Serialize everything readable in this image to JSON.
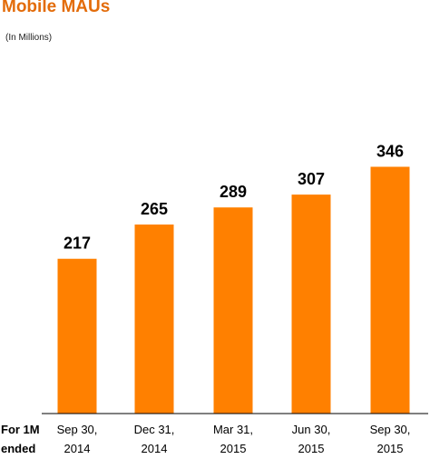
{
  "chart_data": {
    "type": "bar",
    "title": "Mobile MAUs",
    "subtitle": "(In Millions)",
    "x_axis_prefix": [
      "For 1M",
      "ended"
    ],
    "categories": [
      [
        "Sep 30,",
        "2014"
      ],
      [
        "Dec 31,",
        "2014"
      ],
      [
        "Mar 31,",
        "2015"
      ],
      [
        "Jun 30,",
        "2015"
      ],
      [
        "Sep 30,",
        "2015"
      ]
    ],
    "values": [
      217,
      265,
      289,
      307,
      346
    ],
    "data_labels": [
      "217",
      "265",
      "289",
      "307",
      "346"
    ],
    "ylim": [
      0,
      360
    ],
    "grid": false,
    "legend": "none",
    "colors": {
      "bar": "#ff8000",
      "title": "#e36c0a",
      "axis": "#000000"
    }
  }
}
